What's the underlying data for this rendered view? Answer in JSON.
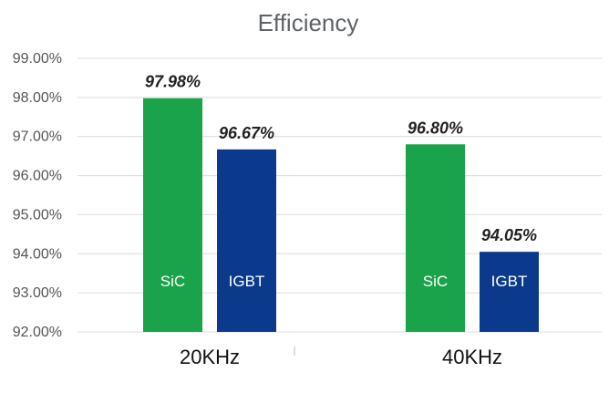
{
  "chart_data": {
    "type": "bar",
    "title": "Efficiency",
    "xlabel": "",
    "ylabel": "",
    "categories": [
      "20KHz",
      "40KHz"
    ],
    "series": [
      {
        "name": "SiC",
        "color": "#1aa34a",
        "values": [
          97.98,
          96.8
        ],
        "labels": [
          "97.98%",
          "96.80%"
        ]
      },
      {
        "name": "IGBT",
        "color": "#0b3a8c",
        "values": [
          96.67,
          94.05
        ],
        "labels": [
          "96.67%",
          "94.05%"
        ]
      }
    ],
    "ylim": [
      92,
      99
    ],
    "yticks": [
      92,
      93,
      94,
      95,
      96,
      97,
      98,
      99
    ],
    "ytick_labels": [
      "92.00%",
      "93.00%",
      "94.00%",
      "95.00%",
      "96.00%",
      "97.00%",
      "98.00%",
      "99.00%"
    ],
    "grid": true,
    "legend": "none"
  }
}
